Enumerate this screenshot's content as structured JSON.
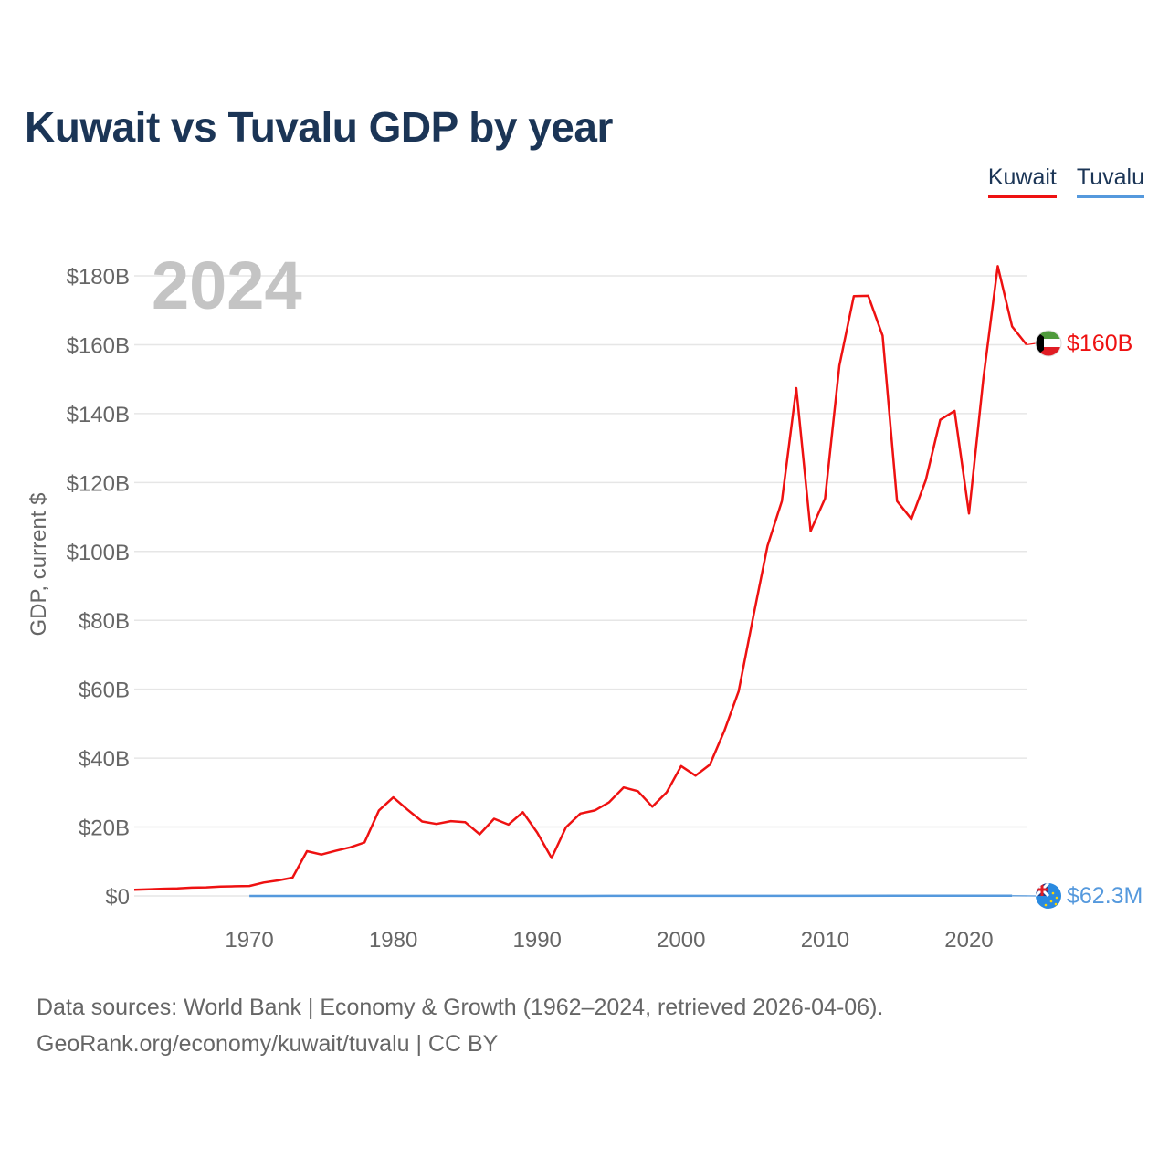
{
  "page": {
    "title": "Kuwait vs Tuvalu GDP by year",
    "source_line": "Data sources: World Bank | Economy & Growth (1962–2024, retrieved 2026-04-06).",
    "attribution_line": "GeoRank.org/economy/kuwait/tuvalu | CC BY"
  },
  "colors": {
    "title": "#1b3556",
    "kuwait": "#ee1111",
    "tuvalu": "#5599dd",
    "grid": "#e6e6e6",
    "axis_text": "#666666",
    "year_watermark": "#c4c4c4"
  },
  "chart_data": {
    "type": "line",
    "title": "Kuwait vs Tuvalu GDP by year",
    "year_label": "2024",
    "xlabel": "",
    "ylabel": "GDP, current $",
    "xlim": [
      1962,
      2024
    ],
    "ylim": [
      0,
      190
    ],
    "y_unit": "billions of current US$",
    "x_ticks": [
      1970,
      1980,
      1990,
      2000,
      2010,
      2020
    ],
    "y_ticks": [
      {
        "value": 0,
        "label": "$0"
      },
      {
        "value": 20,
        "label": "$20B"
      },
      {
        "value": 40,
        "label": "$40B"
      },
      {
        "value": 60,
        "label": "$60B"
      },
      {
        "value": 80,
        "label": "$80B"
      },
      {
        "value": 100,
        "label": "$100B"
      },
      {
        "value": 120,
        "label": "$120B"
      },
      {
        "value": 140,
        "label": "$140B"
      },
      {
        "value": 160,
        "label": "$160B"
      },
      {
        "value": 180,
        "label": "$180B"
      }
    ],
    "legend_position": "top-right",
    "series": [
      {
        "name": "Kuwait",
        "color": "#ee1111",
        "end_label": "$160B",
        "flag_icon": "kuwait-flag-icon",
        "x": [
          1962,
          1963,
          1964,
          1965,
          1966,
          1967,
          1968,
          1969,
          1970,
          1971,
          1972,
          1973,
          1974,
          1975,
          1976,
          1977,
          1978,
          1979,
          1980,
          1981,
          1982,
          1983,
          1984,
          1985,
          1986,
          1987,
          1988,
          1989,
          1990,
          1991,
          1992,
          1993,
          1994,
          1995,
          1996,
          1997,
          1998,
          1999,
          2000,
          2001,
          2002,
          2003,
          2004,
          2005,
          2006,
          2007,
          2008,
          2009,
          2010,
          2011,
          2012,
          2013,
          2014,
          2015,
          2016,
          2017,
          2018,
          2019,
          2020,
          2021,
          2022,
          2023,
          2024
        ],
        "values": [
          1.8,
          1.9,
          2.1,
          2.2,
          2.4,
          2.5,
          2.7,
          2.8,
          2.9,
          3.9,
          4.5,
          5.3,
          13.0,
          12.0,
          13.1,
          14.1,
          15.5,
          24.8,
          28.6,
          25.0,
          21.6,
          20.9,
          21.7,
          21.4,
          17.9,
          22.4,
          20.7,
          24.3,
          18.4,
          11.0,
          19.9,
          23.9,
          24.8,
          27.2,
          31.5,
          30.4,
          25.9,
          30.1,
          37.7,
          34.9,
          38.1,
          47.9,
          59.4,
          80.8,
          101.6,
          114.6,
          147.4,
          105.9,
          115.4,
          154.0,
          174.1,
          174.2,
          162.6,
          114.6,
          109.4,
          120.7,
          138.2,
          140.8,
          111.0,
          150.1,
          182.8,
          165.3,
          160.0
        ]
      },
      {
        "name": "Tuvalu",
        "color": "#5599dd",
        "end_label": "$62.3M",
        "flag_icon": "tuvalu-flag-icon",
        "x": [
          1970,
          1975,
          1980,
          1985,
          1990,
          1995,
          2000,
          2005,
          2010,
          2015,
          2020,
          2023
        ],
        "values": [
          0.01,
          0.01,
          0.01,
          0.01,
          0.01,
          0.02,
          0.02,
          0.02,
          0.03,
          0.04,
          0.05,
          0.06
        ]
      }
    ]
  }
}
